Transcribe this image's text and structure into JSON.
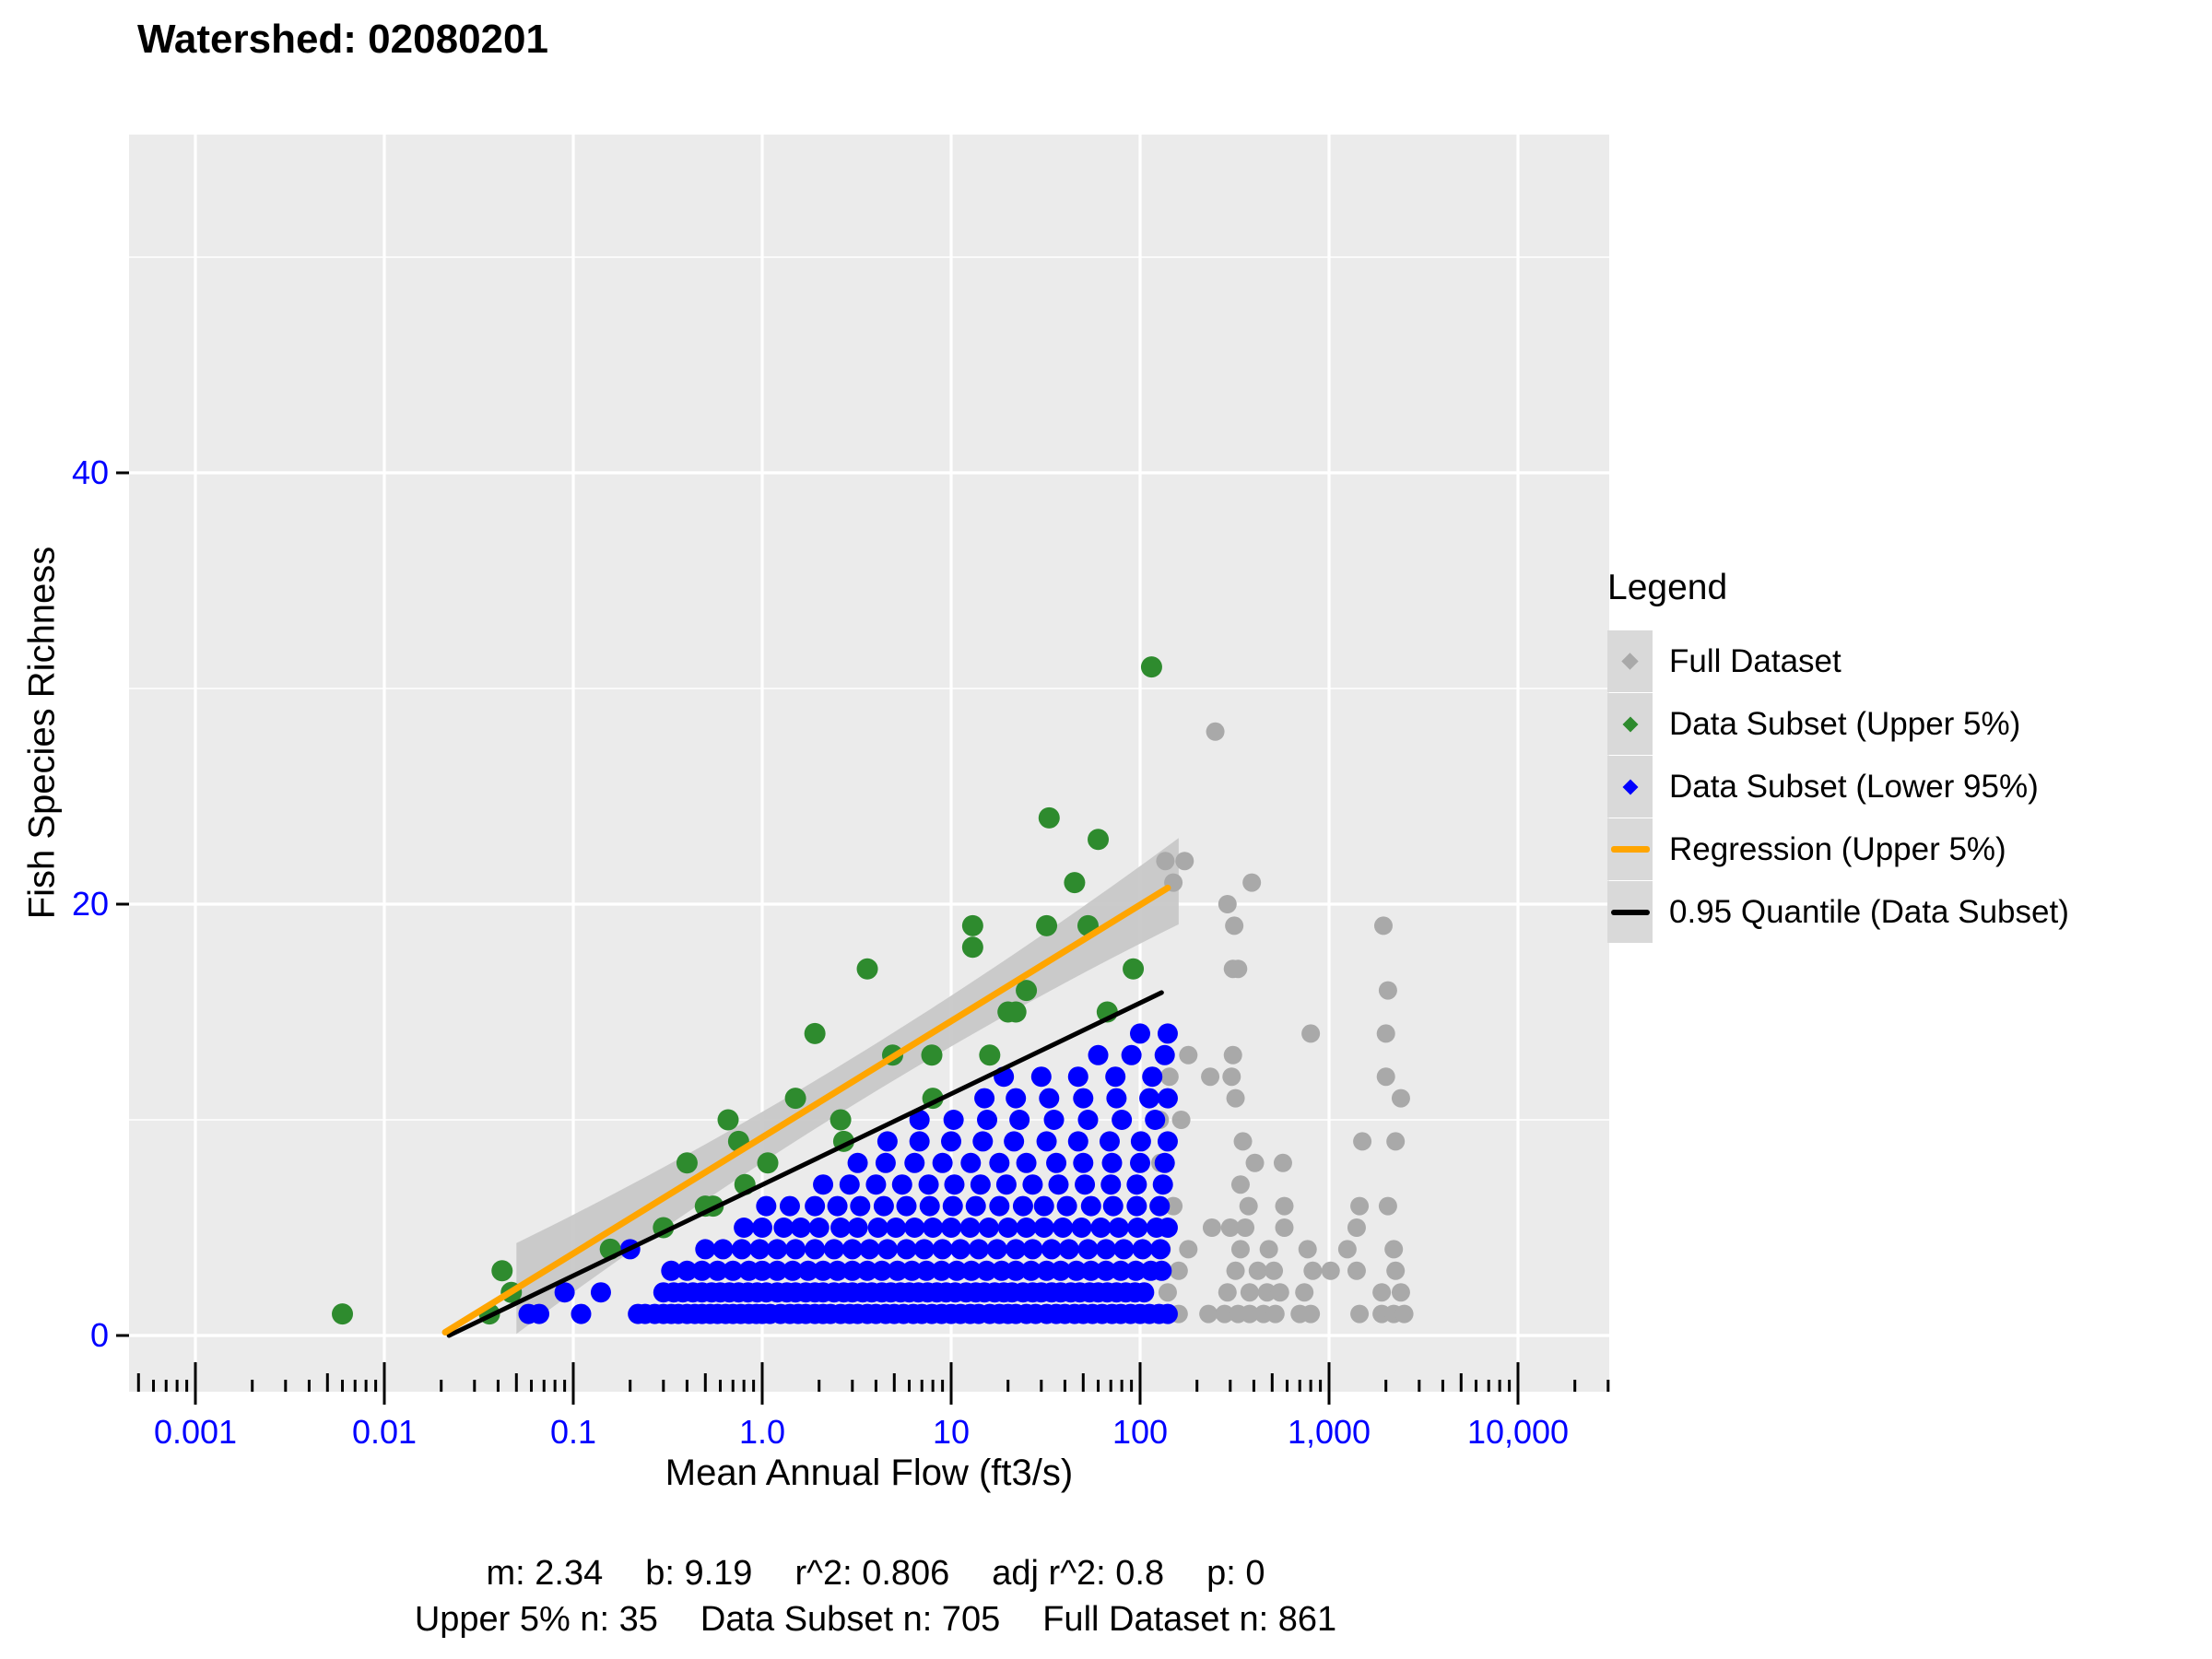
{
  "title": "Watershed: 02080201",
  "axes": {
    "x": {
      "label": "Mean Annual Flow (ft3/s)",
      "scale": "log10",
      "ticks": [
        {
          "value": 0.001,
          "label": "0.001"
        },
        {
          "value": 0.01,
          "label": "0.01"
        },
        {
          "value": 0.1,
          "label": "0.1"
        },
        {
          "value": 1,
          "label": "1.0"
        },
        {
          "value": 10,
          "label": "10"
        },
        {
          "value": 100,
          "label": "100"
        },
        {
          "value": 1000,
          "label": "1,000"
        },
        {
          "value": 10000,
          "label": "10,000"
        }
      ],
      "tick_label_color": "#0000FF"
    },
    "y": {
      "label": "Fish Species Richness",
      "ticks": [
        {
          "value": 0,
          "label": "0"
        },
        {
          "value": 20,
          "label": "20"
        },
        {
          "value": 40,
          "label": "40"
        }
      ],
      "minor_gridlines": [
        10,
        30,
        50
      ],
      "tick_label_color": "#0000FF"
    }
  },
  "legend": {
    "title": "Legend",
    "items": [
      {
        "label": "Full Dataset",
        "marker": "point",
        "color": "#A9A9A9",
        "size": 13
      },
      {
        "label": "Data Subset (Upper 5%)",
        "marker": "point",
        "color": "#2E8B2E",
        "size": 12
      },
      {
        "label": "Data Subset (Lower 95%)",
        "marker": "point",
        "color": "#0000FF",
        "size": 12
      },
      {
        "label": "Regression (Upper 5%)",
        "marker": "line",
        "color": "#FFA500",
        "size": 7
      },
      {
        "label": "0.95 Quantile (Data Subset)",
        "marker": "line",
        "color": "#000000",
        "size": 6
      }
    ]
  },
  "stats": {
    "m": 2.34,
    "b": 9.19,
    "r2": 0.806,
    "adj_r2": 0.8,
    "p": 0,
    "upper_5_n": 35,
    "data_subset_n": 705,
    "full_dataset_n": 861,
    "line1_items": [
      "m: 2.34",
      "b: 9.19",
      "r^2: 0.806",
      "adj r^2: 0.8",
      "p: 0"
    ],
    "line2_items": [
      "Upper 5% n: 35",
      "Data Subset n: 705",
      "Full Dataset n: 861"
    ]
  },
  "chart_data": {
    "type": "scatter",
    "title": "Watershed: 02080201",
    "xlabel": "Mean Annual Flow (ft3/s)",
    "ylabel": "Fish Species Richness",
    "x_scale": "log10",
    "x_range": [
      0.00045,
      30000
    ],
    "y_range": [
      -2.6,
      55.9
    ],
    "grid": {
      "major_color": "#FFFFFF",
      "panel_color": "#EBEBEB"
    },
    "series": [
      {
        "name": "Full Dataset",
        "color": "#A9A9A9",
        "rows": {
          "1": [
            135,
            160,
            230,
            280,
            330,
            380,
            450,
            520,
            700,
            800,
            1450,
            1900,
            2200,
            2500
          ],
          "2": [
            140,
            290,
            380,
            470,
            550,
            740,
            1900,
            2400
          ],
          "3": [
            160,
            320,
            420,
            510,
            820,
            1020,
            1400,
            2250
          ],
          "4": [
            130,
            180,
            340,
            480,
            770,
            1250,
            2200
          ],
          "5": [
            240,
            300,
            360,
            580,
            1400
          ],
          "6": [
            125,
            150,
            375,
            580,
            1450,
            2050
          ],
          "7": [
            340
          ],
          "8": [
            128,
            405,
            570
          ],
          "9": [
            350,
            1500,
            2250
          ],
          "10": [
            127,
            165
          ],
          "11": [
            320,
            2400
          ],
          "12": [
            143,
            235,
            305,
            2000
          ],
          "13": [
            180,
            310
          ],
          "14": [
            800,
            2000
          ]
        },
        "extra_points": [
          [
            250,
            28
          ],
          [
            136,
            22
          ],
          [
            172,
            22
          ],
          [
            150,
            21
          ],
          [
            390,
            21
          ],
          [
            290,
            20
          ],
          [
            315,
            19
          ],
          [
            1940,
            19
          ],
          [
            310,
            17
          ],
          [
            330,
            17
          ],
          [
            2050,
            16
          ]
        ]
      },
      {
        "name": "Data Subset (Upper 5%)",
        "color": "#2E8B2E",
        "points": [
          [
            0.006,
            1
          ],
          [
            0.036,
            1
          ],
          [
            0.042,
            3
          ],
          [
            0.047,
            2
          ],
          [
            0.157,
            4
          ],
          [
            0.3,
            5
          ],
          [
            0.4,
            8
          ],
          [
            0.5,
            6
          ],
          [
            0.55,
            6
          ],
          [
            0.66,
            10
          ],
          [
            0.75,
            9
          ],
          [
            0.81,
            7
          ],
          [
            1.07,
            8
          ],
          [
            1.5,
            11
          ],
          [
            1.9,
            14
          ],
          [
            2.6,
            10
          ],
          [
            2.7,
            9
          ],
          [
            3.6,
            17
          ],
          [
            4.9,
            13
          ],
          [
            7.9,
            13
          ],
          [
            8,
            11
          ],
          [
            13,
            19
          ],
          [
            13,
            18
          ],
          [
            16,
            13
          ],
          [
            20,
            15
          ],
          [
            22,
            15
          ],
          [
            25,
            16
          ],
          [
            32,
            19
          ],
          [
            33,
            24
          ],
          [
            45,
            21
          ],
          [
            53,
            19
          ],
          [
            60,
            23
          ],
          [
            67,
            15
          ],
          [
            92,
            17
          ],
          [
            115,
            31
          ]
        ]
      },
      {
        "name": "Data Subset (Lower 95%)",
        "color": "#0000FF",
        "rows": {
          "1": [
            0.058,
            0.066,
            0.11,
            0.22,
            0.24,
            0.27,
            0.3,
            0.33,
            0.36,
            0.4,
            0.44,
            0.48,
            0.53,
            0.58,
            0.64,
            0.7,
            0.77,
            0.85,
            0.93,
            1.0,
            1.1,
            1.25,
            1.4,
            1.55,
            1.7,
            1.9,
            2.1,
            2.3,
            2.6,
            2.9,
            3.2,
            3.6,
            4.0,
            4.5,
            5.0,
            5.6,
            6.3,
            7.0,
            7.9,
            8.9,
            10,
            11.2,
            12.6,
            14,
            16,
            18,
            20,
            22,
            25,
            28,
            32,
            36,
            40,
            45,
            50,
            56,
            63,
            71,
            79,
            89,
            100,
            112,
            126,
            140
          ],
          "2": [
            0.09,
            0.14,
            0.3,
            0.34,
            0.38,
            0.43,
            0.48,
            0.54,
            0.6,
            0.67,
            0.75,
            0.84,
            0.94,
            1.05,
            1.2,
            1.35,
            1.5,
            1.7,
            1.9,
            2.1,
            2.4,
            2.7,
            3.0,
            3.4,
            3.8,
            4.3,
            4.8,
            5.4,
            6.0,
            6.7,
            7.5,
            8.4,
            9.4,
            10.5,
            12,
            13.5,
            15,
            17,
            19,
            21,
            24,
            27,
            30,
            34,
            38,
            43,
            48,
            54,
            60,
            67,
            75,
            84,
            94,
            105
          ],
          "3": [
            0.33,
            0.4,
            0.48,
            0.58,
            0.7,
            0.85,
            1.0,
            1.2,
            1.45,
            1.75,
            2.1,
            2.5,
            3.0,
            3.6,
            4.3,
            5.2,
            6.2,
            7.4,
            8.9,
            10.7,
            12.8,
            15.4,
            18.5,
            22,
            26.5,
            32,
            38,
            46,
            55,
            66,
            79,
            95,
            114,
            130
          ],
          "4": [
            0.2,
            0.5,
            0.62,
            0.78,
            0.97,
            1.2,
            1.5,
            1.9,
            2.4,
            3.0,
            3.7,
            4.6,
            5.8,
            7.2,
            9.0,
            11.2,
            14,
            17.5,
            22,
            27,
            34,
            42,
            53,
            66,
            82,
            103,
            128
          ],
          "5": [
            0.8,
            1.0,
            1.3,
            1.6,
            2.0,
            2.6,
            3.2,
            4.1,
            5.1,
            6.4,
            8.0,
            10,
            12.6,
            15.8,
            20,
            25,
            31,
            39,
            49,
            62,
            77,
            97,
            122,
            140
          ],
          "6": [
            1.05,
            1.4,
            1.9,
            2.5,
            3.3,
            4.4,
            5.8,
            7.7,
            10.2,
            13.5,
            18,
            24,
            31,
            41,
            55,
            72,
            96,
            127
          ],
          "7": [
            2.1,
            2.9,
            4.0,
            5.5,
            7.6,
            10.4,
            14.3,
            19.6,
            27,
            37,
            51,
            70,
            96,
            132
          ],
          "8": [
            3.2,
            4.5,
            6.4,
            9.0,
            12.7,
            18,
            25,
            36,
            50,
            71,
            100,
            135
          ],
          "9": [
            4.6,
            6.8,
            10,
            14.7,
            21.5,
            32,
            47,
            69,
            101,
            140
          ],
          "10": [
            6.8,
            10.3,
            15.5,
            23,
            35,
            53,
            80,
            120
          ],
          "11": [
            15,
            22,
            33,
            50,
            75,
            112,
            140
          ],
          "12": [
            19,
            30,
            47,
            74,
            116
          ],
          "13": [
            60,
            90,
            135
          ],
          "14": [
            100,
            140
          ]
        }
      }
    ],
    "regression": {
      "name": "Regression (Upper 5%)",
      "m_ln": 2.34,
      "b": 9.19,
      "x_start": 0.021,
      "x_end": 140,
      "color": "#FFA500"
    },
    "quantile": {
      "name": "0.95 Quantile (Data Subset)",
      "x_start": 0.022,
      "y_start": 0,
      "x_end": 130,
      "y_end": 15.9,
      "color": "#000000"
    },
    "ribbon": {
      "x_start": 0.05,
      "x_end": 160,
      "half_width_min": 1.1,
      "curvature": 0.31,
      "center_log10": 0.5,
      "color": "#C8C8C8"
    }
  }
}
